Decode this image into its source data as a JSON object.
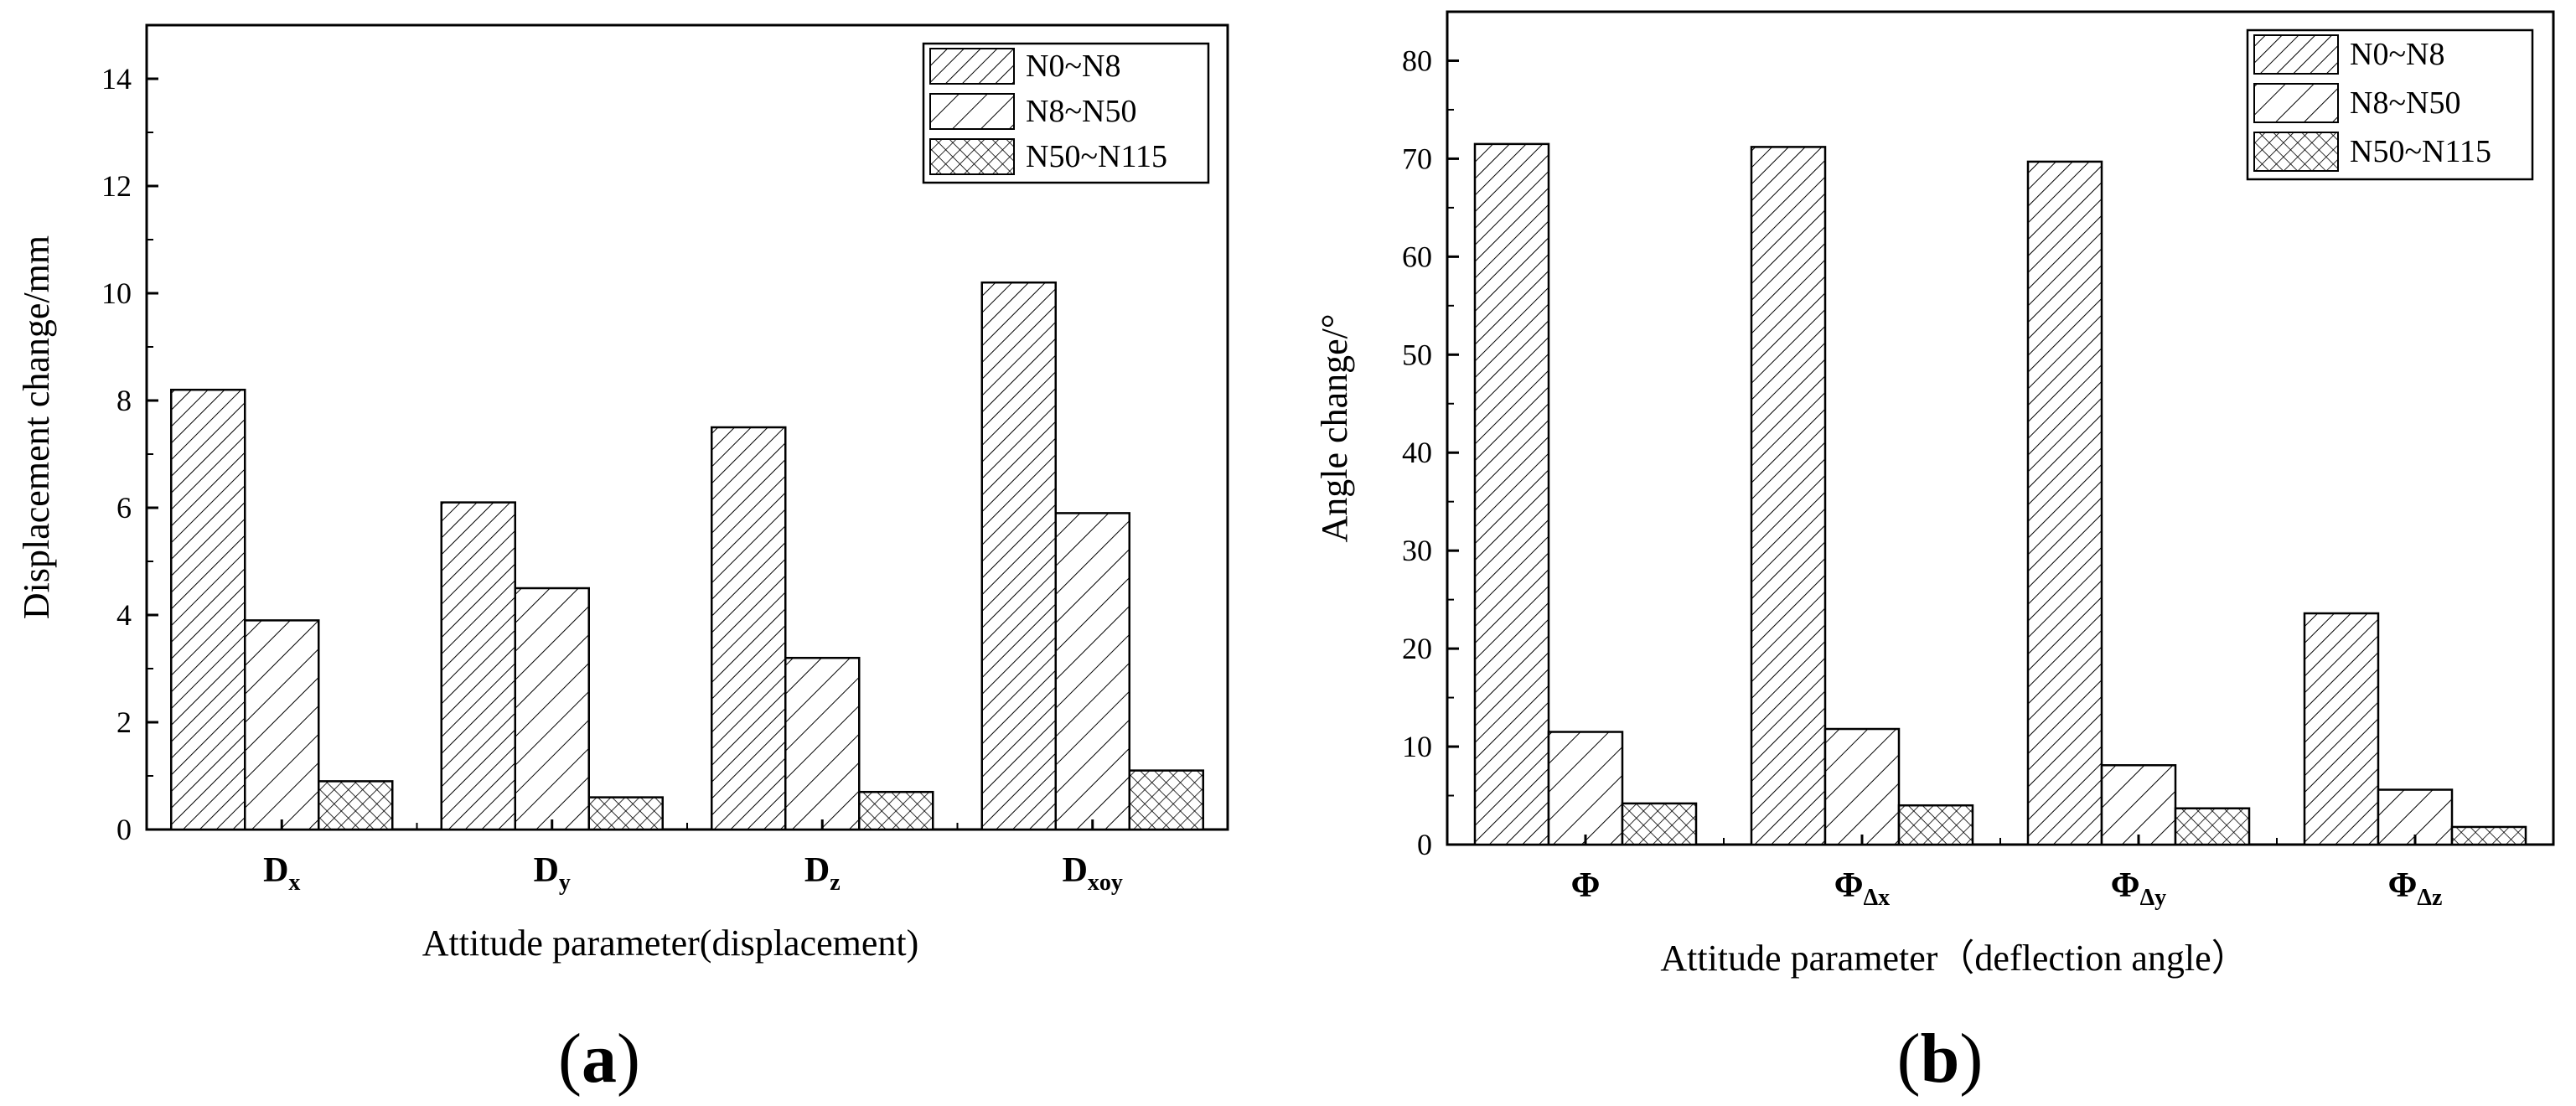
{
  "chart_data": [
    {
      "type": "bar",
      "panel": "(a)",
      "title": "",
      "xlabel": "Attitude parameter(displacement)",
      "ylabel": "Displacement change/mm",
      "ylim": [
        0,
        15
      ],
      "yticks": [
        0,
        2,
        4,
        6,
        8,
        10,
        12,
        14
      ],
      "categories": [
        {
          "base": "D",
          "sub": "x"
        },
        {
          "base": "D",
          "sub": "y"
        },
        {
          "base": "D",
          "sub": "z"
        },
        {
          "base": "D",
          "sub": "xoy"
        }
      ],
      "series": [
        {
          "name": "N0~N8",
          "pattern": "dense",
          "values": [
            8.2,
            6.1,
            7.5,
            10.2
          ]
        },
        {
          "name": "N8~N50",
          "pattern": "sparse",
          "values": [
            3.9,
            4.5,
            3.2,
            5.9
          ]
        },
        {
          "name": "N50~N115",
          "pattern": "cross",
          "values": [
            0.9,
            0.6,
            0.7,
            1.1
          ]
        }
      ],
      "legend": "top-right",
      "grid": false
    },
    {
      "type": "bar",
      "panel": "(b)",
      "title": "",
      "xlabel": "Attitude parameter（deflection angle）",
      "ylabel": "Angle change/°",
      "ylim": [
        0,
        85
      ],
      "yticks": [
        0,
        10,
        20,
        30,
        40,
        50,
        60,
        70,
        80
      ],
      "categories": [
        {
          "base": "Φ",
          "sub": ""
        },
        {
          "base": "Φ",
          "sub": "Δx"
        },
        {
          "base": "Φ",
          "sub": "Δy"
        },
        {
          "base": "Φ",
          "sub": "Δz"
        }
      ],
      "series": [
        {
          "name": "N0~N8",
          "pattern": "dense",
          "values": [
            71.5,
            71.2,
            69.7,
            23.6
          ]
        },
        {
          "name": "N8~N50",
          "pattern": "sparse",
          "values": [
            11.5,
            11.8,
            8.1,
            5.6
          ]
        },
        {
          "name": "N50~N115",
          "pattern": "cross",
          "values": [
            4.2,
            4.0,
            3.7,
            1.8
          ]
        }
      ],
      "legend": "top-right",
      "grid": false
    }
  ],
  "labels": {
    "panel_a_letter": "a",
    "panel_b_letter": "b"
  }
}
